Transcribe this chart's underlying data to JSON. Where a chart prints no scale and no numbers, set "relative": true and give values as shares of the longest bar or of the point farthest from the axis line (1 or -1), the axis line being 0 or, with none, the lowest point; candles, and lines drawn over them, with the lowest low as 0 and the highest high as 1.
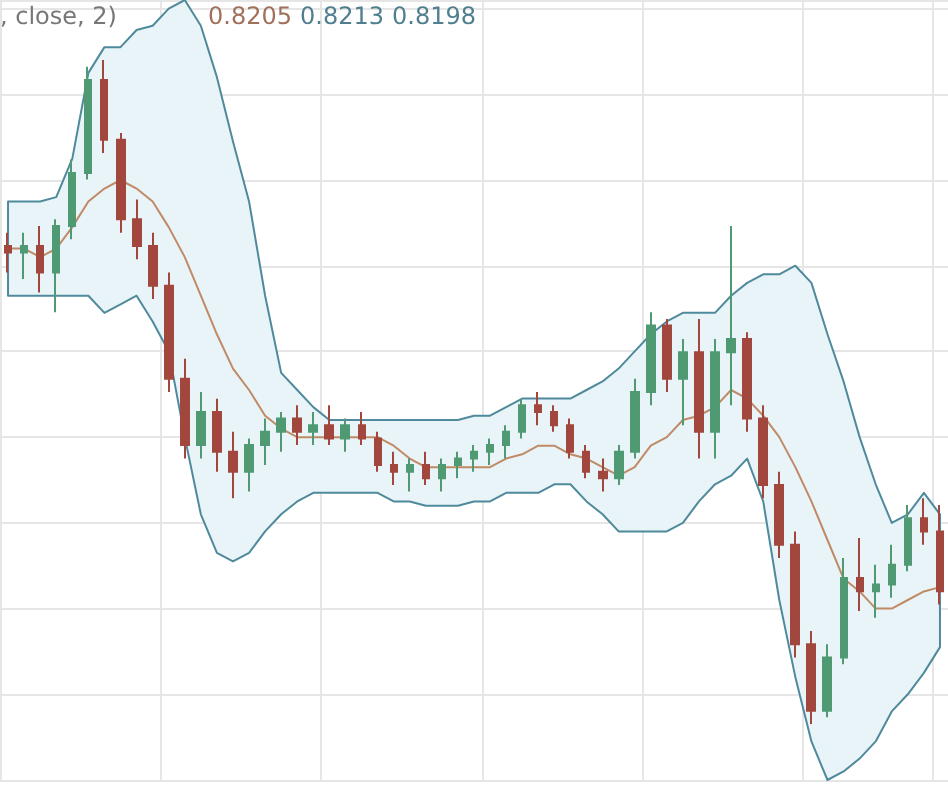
{
  "chart_data": [
    {
      "type": "line",
      "relative": true,
      "grid": true,
      "annotations": [
        ", close, 2)",
        "0.8205",
        "0.8213",
        "0.8198"
      ],
      "categories": [
        null,
        null,
        null,
        null,
        null,
        null,
        null,
        null,
        null,
        null,
        null,
        null,
        null,
        null,
        null,
        null,
        null,
        null,
        null,
        null,
        null,
        null,
        null,
        null,
        null,
        null,
        null,
        null,
        null,
        null,
        null,
        null,
        null,
        null,
        null,
        null,
        null,
        null,
        null,
        null,
        null,
        null,
        null,
        null,
        null,
        null,
        null,
        null,
        null,
        null,
        null,
        null,
        null,
        null,
        null,
        null,
        null,
        null,
        null
      ],
      "series": [
        {
          "color": "#c08a66",
          "values": [
            0.84,
            0.84,
            0.82,
            0.84,
            0.89,
            0.95,
            0.98,
            1.0,
            0.98,
            0.95,
            0.89,
            0.82,
            0.73,
            0.64,
            0.56,
            0.51,
            0.45,
            0.42,
            0.4,
            0.4,
            0.4,
            0.4,
            0.4,
            0.4,
            0.38,
            0.35,
            0.33,
            0.33,
            0.33,
            0.33,
            0.33,
            0.35,
            0.36,
            0.38,
            0.38,
            0.36,
            0.35,
            0.33,
            0.31,
            0.33,
            0.38,
            0.4,
            0.44,
            0.45,
            0.47,
            0.51,
            0.49,
            0.45,
            0.4,
            0.33,
            0.25,
            0.16,
            0.07,
            0.04,
            0.0,
            0.0,
            0.02,
            0.04,
            0.05
          ],
          "upper": [
            0.95,
            0.95,
            0.95,
            0.96,
            1.05,
            1.25,
            1.31,
            1.31,
            1.35,
            1.36,
            1.4,
            1.42,
            1.36,
            1.24,
            1.09,
            0.95,
            0.73,
            0.55,
            0.51,
            0.47,
            0.44,
            0.44,
            0.44,
            0.44,
            0.44,
            0.44,
            0.44,
            0.44,
            0.44,
            0.45,
            0.45,
            0.47,
            0.49,
            0.49,
            0.49,
            0.49,
            0.51,
            0.53,
            0.56,
            0.6,
            0.64,
            0.67,
            0.69,
            0.69,
            0.69,
            0.73,
            0.76,
            0.78,
            0.78,
            0.8,
            0.76,
            0.64,
            0.53,
            0.4,
            0.29,
            0.2,
            0.22,
            0.27,
            0.22
          ],
          "lower": [
            0.73,
            0.73,
            0.73,
            0.73,
            0.73,
            0.73,
            0.69,
            0.71,
            0.73,
            0.67,
            0.6,
            0.4,
            0.22,
            0.13,
            0.11,
            0.13,
            0.18,
            0.22,
            0.25,
            0.27,
            0.27,
            0.27,
            0.27,
            0.27,
            0.25,
            0.25,
            0.24,
            0.24,
            0.24,
            0.25,
            0.25,
            0.27,
            0.27,
            0.27,
            0.29,
            0.29,
            0.25,
            0.22,
            0.18,
            0.18,
            0.18,
            0.18,
            0.2,
            0.25,
            0.29,
            0.31,
            0.35,
            0.25,
            0.02,
            -0.16,
            -0.31,
            -0.4,
            -0.38,
            -0.35,
            -0.31,
            -0.24,
            -0.2,
            -0.15,
            -0.09
          ]
        }
      ]
    },
    {
      "type": "candlestick",
      "relative": true,
      "categories": [
        null,
        null,
        null,
        null,
        null,
        null,
        null,
        null,
        null,
        null,
        null,
        null,
        null,
        null,
        null,
        null,
        null,
        null,
        null,
        null,
        null,
        null,
        null,
        null,
        null,
        null,
        null,
        null,
        null,
        null,
        null,
        null,
        null,
        null,
        null,
        null,
        null,
        null,
        null,
        null,
        null,
        null,
        null,
        null,
        null,
        null,
        null,
        null,
        null,
        null,
        null,
        null,
        null,
        null,
        null,
        null,
        null,
        null,
        null
      ],
      "ohlc": [
        [
          0.72,
          0.74,
          0.68,
          0.71
        ],
        [
          0.71,
          0.74,
          0.67,
          0.72
        ],
        [
          0.72,
          0.75,
          0.65,
          0.68
        ],
        [
          0.68,
          0.76,
          0.62,
          0.75
        ],
        [
          0.75,
          0.85,
          0.73,
          0.83
        ],
        [
          0.83,
          0.99,
          0.82,
          0.97
        ],
        [
          0.97,
          1.0,
          0.86,
          0.88
        ],
        [
          0.88,
          0.89,
          0.74,
          0.76
        ],
        [
          0.76,
          0.79,
          0.7,
          0.72
        ],
        [
          0.72,
          0.74,
          0.64,
          0.66
        ],
        [
          0.66,
          0.68,
          0.5,
          0.52
        ],
        [
          0.52,
          0.55,
          0.4,
          0.42
        ],
        [
          0.42,
          0.5,
          0.4,
          0.47
        ],
        [
          0.47,
          0.49,
          0.38,
          0.41
        ],
        [
          0.41,
          0.44,
          0.34,
          0.38
        ],
        [
          0.38,
          0.43,
          0.35,
          0.42
        ],
        [
          0.42,
          0.46,
          0.39,
          0.44
        ],
        [
          0.44,
          0.47,
          0.41,
          0.46
        ],
        [
          0.46,
          0.48,
          0.42,
          0.44
        ],
        [
          0.44,
          0.47,
          0.42,
          0.45
        ],
        [
          0.45,
          0.48,
          0.42,
          0.43
        ],
        [
          0.43,
          0.46,
          0.41,
          0.45
        ],
        [
          0.45,
          0.47,
          0.42,
          0.43
        ],
        [
          0.43,
          0.44,
          0.38,
          0.39
        ],
        [
          0.39,
          0.41,
          0.36,
          0.38
        ],
        [
          0.38,
          0.4,
          0.35,
          0.39
        ],
        [
          0.39,
          0.41,
          0.36,
          0.37
        ],
        [
          0.37,
          0.4,
          0.35,
          0.39
        ],
        [
          0.39,
          0.41,
          0.37,
          0.4
        ],
        [
          0.4,
          0.42,
          0.38,
          0.41
        ],
        [
          0.41,
          0.43,
          0.39,
          0.42
        ],
        [
          0.42,
          0.45,
          0.4,
          0.44
        ],
        [
          0.44,
          0.49,
          0.43,
          0.48
        ],
        [
          0.48,
          0.5,
          0.45,
          0.47
        ],
        [
          0.47,
          0.48,
          0.44,
          0.45
        ],
        [
          0.45,
          0.46,
          0.4,
          0.41
        ],
        [
          0.41,
          0.42,
          0.37,
          0.38
        ],
        [
          0.38,
          0.4,
          0.35,
          0.37
        ],
        [
          0.37,
          0.42,
          0.36,
          0.41
        ],
        [
          0.41,
          0.52,
          0.4,
          0.5
        ],
        [
          0.5,
          0.62,
          0.48,
          0.6
        ],
        [
          0.6,
          0.61,
          0.5,
          0.52
        ],
        [
          0.52,
          0.58,
          0.45,
          0.56
        ],
        [
          0.56,
          0.61,
          0.4,
          0.44
        ],
        [
          0.44,
          0.58,
          0.4,
          0.56
        ],
        [
          0.56,
          0.75,
          0.48,
          0.58
        ],
        [
          0.58,
          0.59,
          0.44,
          0.46
        ],
        [
          0.46,
          0.48,
          0.34,
          0.36
        ],
        [
          0.36,
          0.38,
          0.25,
          0.27
        ],
        [
          0.27,
          0.29,
          0.1,
          0.12
        ],
        [
          0.12,
          0.14,
          0.0,
          0.02
        ],
        [
          0.02,
          0.12,
          0.01,
          0.1
        ],
        [
          0.1,
          0.25,
          0.09,
          0.22
        ],
        [
          0.22,
          0.28,
          0.17,
          0.2
        ],
        [
          0.2,
          0.24,
          0.16,
          0.21
        ],
        [
          0.21,
          0.27,
          0.19,
          0.24
        ],
        [
          0.24,
          0.33,
          0.23,
          0.31
        ],
        [
          0.31,
          0.34,
          0.27,
          0.29
        ],
        [
          0.29,
          0.33,
          0.18,
          0.2
        ]
      ],
      "colors": [
        "#a2473d",
        "#4f9a73",
        "#a2473d",
        "#4f9a73",
        "#4f9a73",
        "#4f9a73",
        "#a2473d",
        "#a2473d",
        "#a2473d",
        "#a2473d",
        "#a2473d",
        "#a2473d",
        "#4f9a73",
        "#a2473d",
        "#a2473d",
        "#4f9a73",
        "#4f9a73",
        "#4f9a73",
        "#a2473d",
        "#4f9a73",
        "#a2473d",
        "#4f9a73",
        "#a2473d",
        "#a2473d",
        "#a2473d",
        "#4f9a73",
        "#a2473d",
        "#4f9a73",
        "#4f9a73",
        "#4f9a73",
        "#4f9a73",
        "#4f9a73",
        "#4f9a73",
        "#a2473d",
        "#a2473d",
        "#a2473d",
        "#a2473d",
        "#a2473d",
        "#4f9a73",
        "#4f9a73",
        "#4f9a73",
        "#a2473d",
        "#4f9a73",
        "#a2473d",
        "#4f9a73",
        "#4f9a73",
        "#a2473d",
        "#a2473d",
        "#a2473d",
        "#a2473d",
        "#a2473d",
        "#4f9a73",
        "#4f9a73",
        "#a2473d",
        "#4f9a73",
        "#4f9a73",
        "#4f9a73",
        "#a2473d",
        "#a2473d"
      ]
    }
  ]
}
